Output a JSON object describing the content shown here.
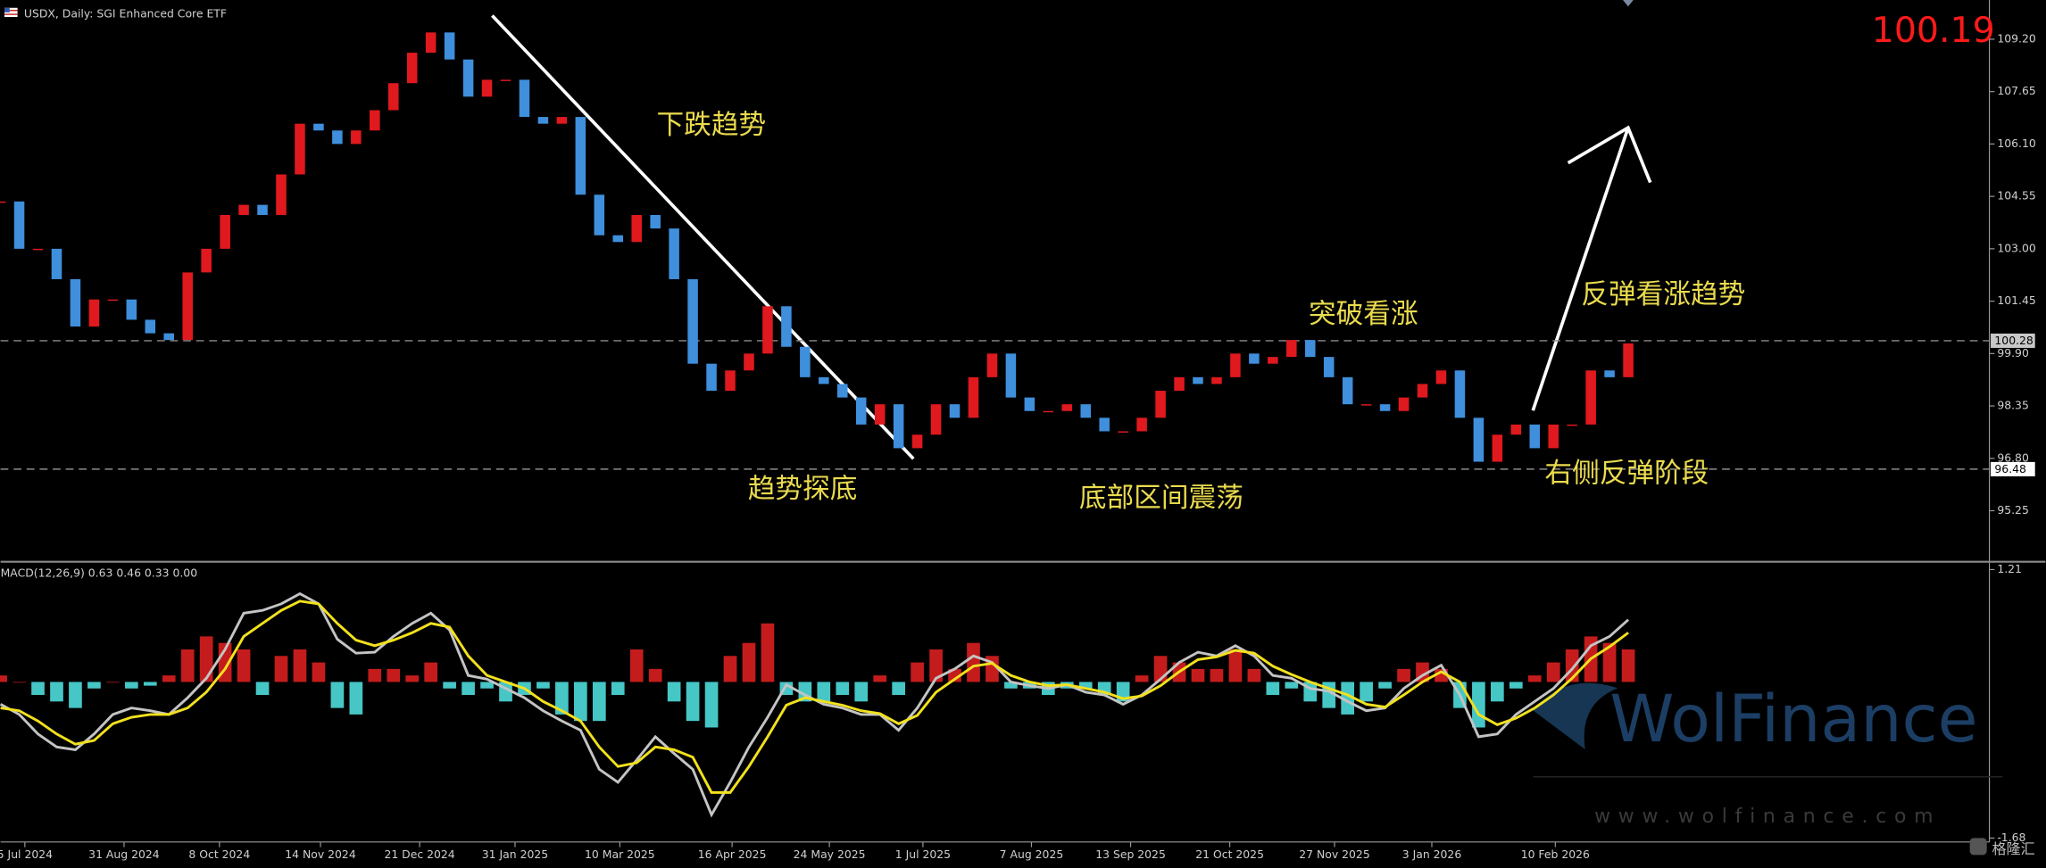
{
  "chart_data": [
    {
      "type": "candlestick",
      "title": "USDX, Daily:  SGI Enhanced Core ETF",
      "values": [
        104.4,
        103.0,
        103.0,
        102.1,
        100.7,
        101.5,
        101.5,
        100.9,
        100.5,
        100.3,
        102.3,
        103.0,
        104.0,
        104.3,
        104.0,
        105.2,
        106.7,
        106.5,
        106.1,
        106.5,
        107.1,
        107.9,
        108.8,
        109.4,
        108.6,
        107.5,
        108.0,
        108.0,
        106.9,
        106.7,
        106.9,
        104.6,
        103.4,
        103.2,
        104.0,
        103.6,
        102.1,
        99.6,
        98.8,
        99.4,
        99.9,
        101.3,
        100.1,
        99.2,
        99.0,
        98.6,
        97.8,
        98.4,
        97.1,
        97.5,
        98.4,
        98.0,
        99.2,
        99.9,
        98.6,
        98.2,
        98.2,
        98.4,
        98.0,
        97.6,
        97.6,
        98.0,
        98.8,
        99.2,
        99.0,
        99.2,
        99.9,
        99.6,
        99.8,
        100.3,
        99.8,
        99.2,
        98.4,
        98.4,
        98.2,
        98.6,
        99.0,
        99.4,
        98.0,
        96.7,
        97.5,
        97.8,
        97.1,
        97.8,
        97.8,
        99.4,
        99.2,
        100.2
      ],
      "up_color": "#e0191e",
      "down_color": "#3f8fdc",
      "ylim": [
        93.78,
        110.36
      ],
      "yticks": [
        {
          "value": 109.2,
          "label": "109.20"
        },
        107.65,
        {
          "value": 106.1,
          "label": "106.10"
        },
        104.55,
        {
          "value": 103.0,
          "label": "103.00"
        },
        101.45,
        {
          "value": 99.9,
          "label": "99.90"
        },
        98.35,
        {
          "value": 96.8,
          "label": "96.80"
        },
        95.25
      ],
      "hlines": [
        100.28,
        96.48
      ],
      "last_price": 100.19,
      "annotations": [
        "下跌趋势",
        "趋势探底",
        "底部区间震荡",
        "突破看涨",
        "反弹看涨趋势",
        "右侧反弹阶段"
      ]
    },
    {
      "type": "macd",
      "title": "MACD(12,26,9) 0.63 0.46 0.33 0.00",
      "histogram": {
        "pos_color": "#c41c1c",
        "neg_color": "#47c6c6",
        "values": [
          0.07,
          0,
          -0.14,
          -0.21,
          -0.28,
          -0.07,
          0,
          -0.07,
          -0.04,
          0.07,
          0.35,
          0.49,
          0.42,
          0.35,
          -0.14,
          0.28,
          0.35,
          0.21,
          -0.28,
          -0.35,
          0.14,
          0.14,
          0.07,
          0.21,
          -0.07,
          -0.14,
          -0.07,
          -0.21,
          -0.14,
          -0.07,
          -0.35,
          -0.42,
          -0.42,
          -0.14,
          0.35,
          0.14,
          -0.21,
          -0.42,
          -0.49,
          0.28,
          0.42,
          0.63,
          -0.14,
          -0.21,
          -0.21,
          -0.14,
          -0.21,
          0.07,
          -0.14,
          0.21,
          0.35,
          0.14,
          0.42,
          0.28,
          -0.07,
          -0.07,
          -0.14,
          -0.07,
          -0.07,
          -0.14,
          -0.21,
          0.07,
          0.28,
          0.21,
          0.14,
          0.14,
          0.35,
          0.14,
          -0.14,
          -0.07,
          -0.21,
          -0.28,
          -0.35,
          -0.21,
          -0.07,
          0.14,
          0.21,
          0.14,
          -0.28,
          -0.49,
          -0.21,
          -0.07,
          0.07,
          0.21,
          0.35,
          0.49,
          0.42,
          0.35
        ]
      },
      "macd": {
        "color": "#c4c4c4",
        "values": [
          -0.24,
          -0.35,
          -0.56,
          -0.7,
          -0.73,
          -0.56,
          -0.35,
          -0.28,
          -0.31,
          -0.35,
          -0.17,
          0.04,
          0.35,
          0.74,
          0.77,
          0.84,
          0.95,
          0.84,
          0.46,
          0.31,
          0.32,
          0.49,
          0.63,
          0.74,
          0.56,
          0.07,
          0.03,
          -0.07,
          -0.17,
          -0.31,
          -0.42,
          -0.52,
          -0.94,
          -1.08,
          -0.84,
          -0.59,
          -0.77,
          -0.94,
          -1.43,
          -1.08,
          -0.7,
          -0.38,
          -0.03,
          -0.14,
          -0.24,
          -0.28,
          -0.35,
          -0.35,
          -0.52,
          -0.28,
          0.04,
          0.14,
          0.28,
          0.21,
          0,
          -0.04,
          -0.07,
          -0.03,
          -0.11,
          -0.14,
          -0.24,
          -0.14,
          0.03,
          0.21,
          0.32,
          0.28,
          0.39,
          0.28,
          0.07,
          0.04,
          -0.07,
          -0.1,
          -0.21,
          -0.31,
          -0.28,
          -0.07,
          0.07,
          0.18,
          -0.14,
          -0.59,
          -0.56,
          -0.35,
          -0.21,
          -0.07,
          0.14,
          0.39,
          0.49,
          0.67
        ]
      },
      "signal": {
        "color": "#f2e11c",
        "values": [
          -0.28,
          -0.31,
          -0.42,
          -0.56,
          -0.67,
          -0.63,
          -0.45,
          -0.38,
          -0.35,
          -0.35,
          -0.28,
          -0.11,
          0.14,
          0.49,
          0.63,
          0.77,
          0.87,
          0.84,
          0.63,
          0.45,
          0.39,
          0.45,
          0.53,
          0.63,
          0.59,
          0.28,
          0.07,
          0,
          -0.07,
          -0.21,
          -0.31,
          -0.42,
          -0.7,
          -0.91,
          -0.87,
          -0.7,
          -0.73,
          -0.81,
          -1.19,
          -1.19,
          -0.91,
          -0.59,
          -0.25,
          -0.17,
          -0.21,
          -0.25,
          -0.31,
          -0.34,
          -0.45,
          -0.36,
          -0.11,
          0.03,
          0.17,
          0.2,
          0.07,
          0,
          -0.04,
          -0.03,
          -0.07,
          -0.11,
          -0.18,
          -0.15,
          -0.04,
          0.11,
          0.24,
          0.27,
          0.34,
          0.31,
          0.17,
          0.08,
          0,
          -0.07,
          -0.14,
          -0.24,
          -0.27,
          -0.14,
          0,
          0.11,
          0,
          -0.35,
          -0.46,
          -0.39,
          -0.28,
          -0.14,
          0.04,
          0.25,
          0.38,
          0.53
        ]
      },
      "ylim": [
        -1.68,
        1.21
      ],
      "yticks": [
        1.21,
        -1.68
      ],
      "xlim": [
        0,
        106.3
      ],
      "xticks": [
        {
          "value": 1.3,
          "label": "5 Jul 2024"
        },
        {
          "value": 6.6,
          "label": "31 Aug 2024"
        },
        {
          "value": 11.7,
          "label": "8 Oct 2024"
        },
        {
          "value": 17.1,
          "label": "14 Nov 2024"
        },
        {
          "value": 22.4,
          "label": "21 Dec 2024"
        },
        {
          "value": 27.5,
          "label": "31 Jan 2025"
        },
        {
          "value": 33.1,
          "label": "10 Mar 2025"
        },
        {
          "value": 39.1,
          "label": "16 Apr 2025"
        },
        {
          "value": 44.3,
          "label": "24 May 2025"
        },
        {
          "value": 49.3,
          "label": "1 Jul 2025"
        },
        {
          "value": 55.1,
          "label": "7 Aug 2025"
        },
        {
          "value": 60.4,
          "label": "13 Sep 2025"
        },
        {
          "value": 65.7,
          "label": "21 Oct 2025"
        },
        {
          "value": 71.3,
          "label": "27 Nov 2025"
        },
        {
          "value": 76.5,
          "label": "3 Jan 2026"
        },
        {
          "value": 83.1,
          "label": "10 Feb 2026"
        }
      ]
    }
  ],
  "watermark": {
    "brand": "WolFinance",
    "url": "www.wolfinance.com",
    "logo": "格隆汇"
  }
}
